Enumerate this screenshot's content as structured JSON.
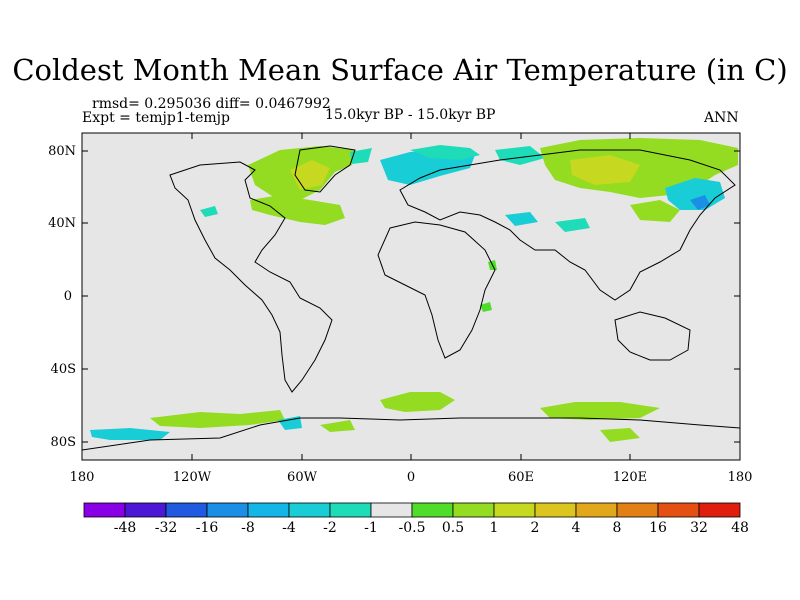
{
  "title": "Coldest Month Mean Surface Air Temperature (in C)",
  "rmsd_line": "rmsd= 0.295036 diff= 0.0467992",
  "expt_line": "Expt = temjp1-temjp",
  "period": "15.0kyr BP - 15.0kyr BP",
  "season": "ANN",
  "axes": {
    "y_ticks": [
      "80N",
      "40N",
      "0",
      "40S",
      "80S"
    ],
    "x_ticks": [
      "180",
      "120W",
      "60W",
      "0",
      "60E",
      "120E",
      "180"
    ]
  },
  "colorbar": {
    "colors": [
      "#8a00e6",
      "#4c18d6",
      "#1f5ae0",
      "#1b8ee6",
      "#13b6e6",
      "#18cdd6",
      "#1edcb8",
      "#e6e6e6",
      "#4fdc2a",
      "#93dc22",
      "#c6d820",
      "#dcc51e",
      "#e0a81a",
      "#e28016",
      "#e45012",
      "#e01e0e"
    ],
    "labels": [
      "-48",
      "-32",
      "-16",
      "-8",
      "-4",
      "-2",
      "-1",
      "-0.5",
      "0.5",
      "1",
      "2",
      "4",
      "8",
      "16",
      "32",
      "48"
    ]
  },
  "colors": {
    "background_field": "#e6e6e6",
    "coast": "#000000"
  }
}
